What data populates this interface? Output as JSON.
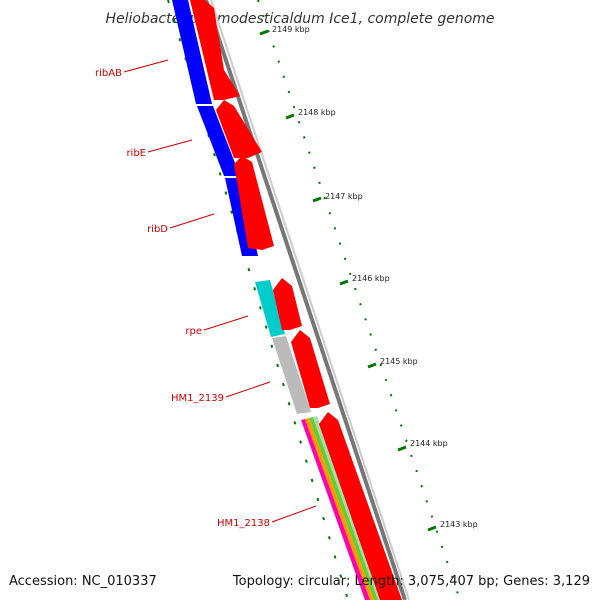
{
  "title": "Heliobacterium modesticaldum Ice1, complete genome",
  "accession": "Accession: NC_010337",
  "summary": "Topology: circular; Length: 3,075,407 bp; Genes: 3,129",
  "colors": {
    "forward_cds": "#ff0000",
    "reverse_cds": "#0000ff",
    "cds_other": "#00cccc",
    "cds_grey": "#bbbbbb",
    "backbone": "#777777",
    "tick": "#007700",
    "label": "#cc0000"
  },
  "gene_labels": [
    "ribAB",
    "ribE",
    "ribD",
    "rpe",
    "HM1_2139",
    "HM1_2138"
  ],
  "kbp_ticks": [
    "2149 kbp",
    "2148 kbp",
    "2147 kbp",
    "2146 kbp",
    "2145 kbp",
    "2144 kbp",
    "2143 kbp"
  ]
}
